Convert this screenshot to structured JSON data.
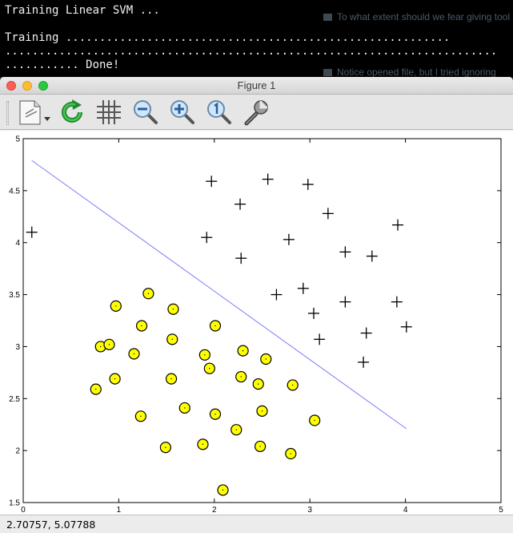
{
  "terminal": {
    "lines": [
      "Training Linear SVM ...",
      "",
      "Training .........................................................",
      ".........................................................................",
      "........... Done!"
    ],
    "behind_text_1": "To what extent should we fear giving tool",
    "behind_text_2": "Notice opened file, but I tried ignoring"
  },
  "window": {
    "title": "Figure 1"
  },
  "toolbar": {
    "items": [
      {
        "name": "edit-icon",
        "interactable": true
      },
      {
        "name": "refresh-icon",
        "interactable": true
      },
      {
        "name": "grid-icon",
        "interactable": true
      },
      {
        "name": "zoom-out-icon",
        "interactable": true
      },
      {
        "name": "zoom-in-icon",
        "interactable": true
      },
      {
        "name": "zoom-reset-icon",
        "interactable": true
      },
      {
        "name": "settings-wrench-icon",
        "interactable": true
      }
    ]
  },
  "status": {
    "coordinates": "2.70757,  5.07788"
  },
  "colors": {
    "positive_marker": "#000000",
    "negative_fill": "#ffff00",
    "boundary_line": "#7b7bff"
  },
  "chart_data": {
    "type": "scatter",
    "title": "",
    "xlabel": "",
    "ylabel": "",
    "xlim": [
      0,
      5
    ],
    "ylim": [
      1.5,
      5
    ],
    "x_ticks": [
      "0",
      "1",
      "2",
      "3",
      "4",
      "5"
    ],
    "y_ticks": [
      "1.5",
      "2",
      "2.5",
      "3",
      "3.5",
      "4",
      "4.5",
      "5"
    ],
    "grid": false,
    "series": [
      {
        "marker": "plus",
        "points": [
          [
            0.09,
            4.1
          ],
          [
            1.97,
            4.59
          ],
          [
            2.27,
            4.37
          ],
          [
            2.56,
            4.61
          ],
          [
            2.98,
            4.56
          ],
          [
            1.92,
            4.05
          ],
          [
            2.28,
            3.85
          ],
          [
            2.78,
            4.03
          ],
          [
            3.19,
            4.28
          ],
          [
            3.92,
            4.17
          ],
          [
            3.37,
            3.91
          ],
          [
            3.65,
            3.87
          ],
          [
            2.65,
            3.5
          ],
          [
            2.93,
            3.56
          ],
          [
            3.37,
            3.43
          ],
          [
            3.91,
            3.43
          ],
          [
            3.04,
            3.32
          ],
          [
            4.01,
            3.19
          ],
          [
            3.59,
            3.13
          ],
          [
            3.1,
            3.07
          ],
          [
            3.56,
            2.85
          ]
        ]
      },
      {
        "marker": "circle",
        "points": [
          [
            0.97,
            3.39
          ],
          [
            1.31,
            3.51
          ],
          [
            1.57,
            3.36
          ],
          [
            1.24,
            3.2
          ],
          [
            2.01,
            3.2
          ],
          [
            0.81,
            3.0
          ],
          [
            0.9,
            3.02
          ],
          [
            1.56,
            3.07
          ],
          [
            1.16,
            2.93
          ],
          [
            1.9,
            2.92
          ],
          [
            2.3,
            2.96
          ],
          [
            2.54,
            2.88
          ],
          [
            1.95,
            2.79
          ],
          [
            0.96,
            2.69
          ],
          [
            1.55,
            2.69
          ],
          [
            2.28,
            2.71
          ],
          [
            2.46,
            2.64
          ],
          [
            2.82,
            2.63
          ],
          [
            0.76,
            2.59
          ],
          [
            1.69,
            2.41
          ],
          [
            2.5,
            2.38
          ],
          [
            1.23,
            2.33
          ],
          [
            2.01,
            2.35
          ],
          [
            3.05,
            2.29
          ],
          [
            2.23,
            2.2
          ],
          [
            1.49,
            2.03
          ],
          [
            1.88,
            2.06
          ],
          [
            2.48,
            2.04
          ],
          [
            2.8,
            1.97
          ],
          [
            2.09,
            1.62
          ]
        ]
      }
    ],
    "boundary": {
      "x": [
        0.09,
        4.01
      ],
      "y": [
        4.79,
        2.21
      ]
    }
  }
}
